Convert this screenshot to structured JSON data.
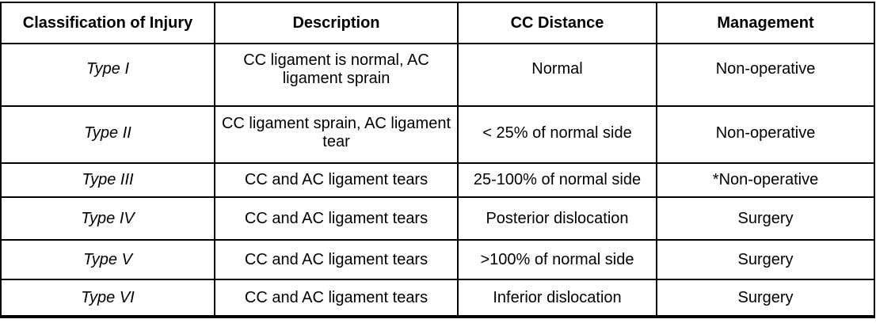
{
  "table": {
    "columns": {
      "classification": "Classification of Injury",
      "description": "Description",
      "cc_distance": "CC Distance",
      "management": "Management"
    },
    "rows": [
      {
        "type": "Type I",
        "description": "CC ligament is normal, AC ligament sprain",
        "cc_distance": "Normal",
        "management": "Non-operative"
      },
      {
        "type": "Type II",
        "description": "CC ligament sprain, AC ligament tear",
        "cc_distance": "< 25% of normal side",
        "management": "Non-operative"
      },
      {
        "type": "Type III",
        "description": "CC and AC ligament tears",
        "cc_distance": "25-100% of normal side",
        "management": "*Non-operative"
      },
      {
        "type": "Type IV",
        "description": "CC and AC ligament tears",
        "cc_distance": "Posterior dislocation",
        "management": "Surgery"
      },
      {
        "type": "Type V",
        "description": "CC and AC ligament tears",
        "cc_distance": ">100% of normal side",
        "management": "Surgery"
      },
      {
        "type": "Type VI",
        "description": "CC and AC ligament tears",
        "cc_distance": "Inferior dislocation",
        "management": "Surgery"
      }
    ],
    "colors": {
      "border": "#000000",
      "text": "#000000",
      "background": "#ffffff"
    }
  }
}
